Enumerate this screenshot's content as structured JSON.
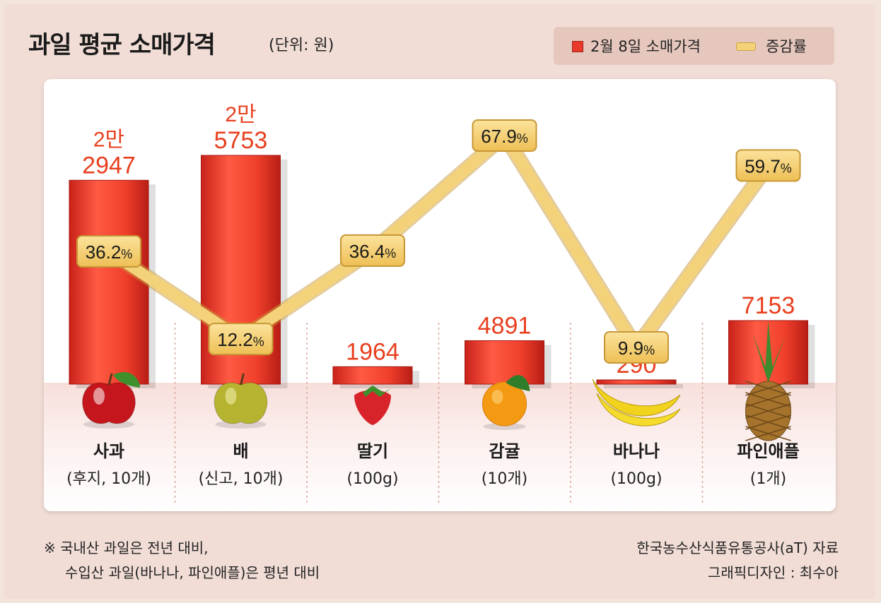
{
  "title": "과일 평균 소매가격",
  "unit": "(단위: 원)",
  "legend": {
    "price": "2월 8일 소매가격",
    "change": "증감률"
  },
  "colors": {
    "bar": "#e8392a",
    "line": "#f3d27a",
    "value_text": "#e8401f",
    "background": "#f1ddd6"
  },
  "chart_data": {
    "type": "bar",
    "categories": [
      "사과",
      "배",
      "딸기",
      "감귤",
      "바나나",
      "파인애플"
    ],
    "sublabels": [
      "(후지, 10개)",
      "(신고, 10개)",
      "(100g)",
      "(10개)",
      "(100g)",
      "(1개)"
    ],
    "series": [
      {
        "name": "2월 8일 소매가격",
        "type": "bar",
        "values": [
          22947,
          25753,
          1964,
          4891,
          290,
          7153
        ]
      },
      {
        "name": "증감률",
        "type": "line",
        "values": [
          36.2,
          12.2,
          36.4,
          67.9,
          9.9,
          59.7
        ]
      }
    ],
    "value_labels": [
      [
        "2만",
        "2947"
      ],
      [
        "2만",
        "5753"
      ],
      [
        "1964"
      ],
      [
        "4891"
      ],
      [
        "290"
      ],
      [
        "7153"
      ]
    ],
    "change_labels": [
      "36.2",
      "12.2",
      "36.4",
      "67.9",
      "9.9",
      "59.7"
    ],
    "percent_sign": "%",
    "icons": [
      "apple-icon",
      "pear-icon",
      "strawberry-icon",
      "orange-icon",
      "banana-icon",
      "pineapple-icon"
    ]
  },
  "footnote": [
    "※ 국내산 과일은 전년 대비,",
    "수입산 과일(바나나, 파인애플)은 평년 대비"
  ],
  "source": [
    "한국농수산식품유통공사(aT) 자료",
    "그래픽디자인 : 최수아"
  ]
}
